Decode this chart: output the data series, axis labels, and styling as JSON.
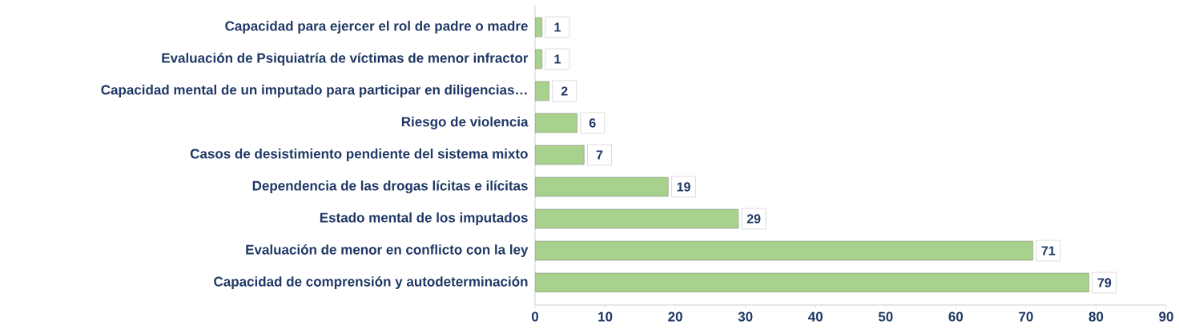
{
  "chart_data": {
    "type": "bar",
    "orientation": "horizontal",
    "categories": [
      "Capacidad para ejercer el rol de padre o madre",
      "Evaluación de Psiquiatría de víctimas de menor infractor",
      "Capacidad mental de un imputado para participar en diligencias…",
      "Riesgo de violencia",
      "Casos de desistimiento pendiente del sistema mixto",
      "Dependencia de las drogas lícitas e ilícitas",
      "Estado mental de los imputados",
      "Evaluación de menor en conflicto con la ley",
      "Capacidad de comprensión y autodeterminación"
    ],
    "values": [
      1,
      1,
      2,
      6,
      7,
      19,
      29,
      71,
      79
    ],
    "color": "#a9d18e",
    "xlim": [
      0,
      90
    ],
    "xticks": [
      0,
      10,
      20,
      30,
      40,
      50,
      60,
      70,
      80,
      90
    ],
    "data_labels": true,
    "grid": false
  }
}
